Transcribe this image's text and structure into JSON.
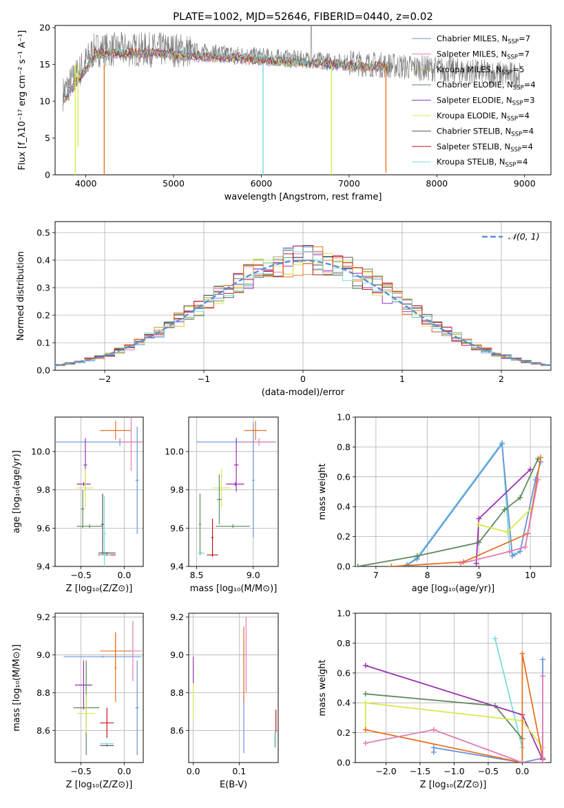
{
  "figure": {
    "title": "PLATE=1002, MJD=52646, FIBERID=0440, z=0.02"
  },
  "chart_data": [
    {
      "id": "spectrum",
      "type": "line",
      "xlabel": "wavelength [Angstrom, rest frame]",
      "ylabel": "Flux [f_λ10⁻¹⁷ erg cm⁻² s⁻¹ A⁻¹]",
      "xlim": [
        3650,
        9300
      ],
      "ylim": [
        0,
        20.3
      ],
      "xticks": [
        4000,
        5000,
        6000,
        7000,
        8000,
        9000
      ],
      "yticks": [
        0,
        5,
        10,
        15,
        20
      ],
      "grid": false,
      "legend_position": "top-right",
      "legend": [
        {
          "pre": "Chabrier MILES, N",
          "sub": "SSP",
          "post": "=7",
          "color": "#6593d8"
        },
        {
          "pre": "Salpeter MILES, N",
          "sub": "SSP",
          "post": "=7",
          "color": "#e07bb5"
        },
        {
          "pre": "Kroupa MILES, N",
          "sub": "SSP",
          "post": "=5",
          "color": "#c2a14a"
        },
        {
          "pre": "Chabrier ELODIE, N",
          "sub": "SSP",
          "post": "=4",
          "color": "#5a8a5a"
        },
        {
          "pre": "Salpeter ELODIE, N",
          "sub": "SSP",
          "post": "=3",
          "color": "#9a2fb0"
        },
        {
          "pre": "Kroupa ELODIE, N",
          "sub": "SSP",
          "post": "=4",
          "color": "#d9e84a"
        },
        {
          "pre": "Chabrier STELIB, N",
          "sub": "SSP",
          "post": "=4",
          "color": "#555555"
        },
        {
          "pre": "Salpeter STELIB, N",
          "sub": "SSP",
          "post": "=4",
          "color": "#c0151b"
        },
        {
          "pre": "Kroupa STELIB, N",
          "sub": "SSP",
          "post": "=4",
          "color": "#7adbe0"
        }
      ],
      "data_color": "#808080",
      "data_range": [
        3740,
        8950
      ],
      "dips": [
        {
          "x": 3880,
          "depth": 0,
          "color": "#d9e84a"
        },
        {
          "x": 3910,
          "depth": 3.8,
          "color": "#d9e84a"
        },
        {
          "x": 4210,
          "depth": 0,
          "color": "#e87020"
        },
        {
          "x": 6020,
          "depth": 0,
          "color": "#7adbe0"
        },
        {
          "x": 6800,
          "depth": 0,
          "color": "#d9e84a"
        },
        {
          "x": 7420,
          "depth": 0.3,
          "color": "#e87020"
        }
      ]
    },
    {
      "id": "residuals",
      "type": "histogram",
      "xlabel": "(data-model)/error",
      "ylabel": "Normed distribution",
      "xlim": [
        -2.5,
        2.5
      ],
      "ylim": [
        0,
        0.54
      ],
      "xticks": [
        -2,
        -1,
        0,
        1,
        2
      ],
      "yticks": [
        0.0,
        0.1,
        0.2,
        0.3,
        0.4,
        0.5
      ],
      "grid": true,
      "legend_position": "top-right",
      "legend_label": "𝒩(0, 1)",
      "reference_curve": {
        "name": "N(0,1)",
        "mu": 0,
        "sigma": 1,
        "color": "#5b8ed6"
      },
      "series_colors": [
        "#6593d8",
        "#e07bb5",
        "#c2a14a",
        "#5a8a5a",
        "#9a2fb0",
        "#d9e84a",
        "#555555",
        "#c0151b",
        "#e87020",
        "#7adbe0"
      ]
    },
    {
      "id": "age_vs_Z",
      "type": "errorbar",
      "xlabel": "Z [log₁₀(Z/Z⊙)]",
      "ylabel": "age  [log₁₀(age/yr)]",
      "xlim": [
        -0.8,
        0.22
      ],
      "ylim": [
        9.4,
        10.18
      ],
      "xticks": [
        -0.5,
        0.0
      ],
      "yticks": [
        9.4,
        9.6,
        9.8,
        10.0
      ],
      "points": [
        {
          "x": -0.05,
          "y": 10.05,
          "xerr": 0.75,
          "yerr": 0.02,
          "color": "#6593d8"
        },
        {
          "x": 0.15,
          "y": 9.85,
          "xerr": 0.02,
          "yerr": 0.28,
          "color": "#6593d8"
        },
        {
          "x": 0.08,
          "y": 10.05,
          "xerr": 0.15,
          "yerr": 0.15,
          "color": "#e07bb5"
        },
        {
          "x": -0.1,
          "y": 10.11,
          "xerr": 0.18,
          "yerr": 0.05,
          "color": "#e87020"
        },
        {
          "x": -0.45,
          "y": 9.93,
          "xerr": 0.02,
          "yerr": 0.14,
          "color": "#9a2fb0"
        },
        {
          "x": -0.47,
          "y": 9.83,
          "xerr": 0.08,
          "yerr": 0.01,
          "color": "#9a2fb0"
        },
        {
          "x": -0.45,
          "y": 9.81,
          "xerr": 0.1,
          "yerr": 0.1,
          "color": "#d9e84a"
        },
        {
          "x": -0.48,
          "y": 9.7,
          "xerr": 0.02,
          "yerr": 0.1,
          "color": "#5a8a5a"
        },
        {
          "x": -0.4,
          "y": 9.61,
          "xerr": 0.15,
          "yerr": 0.01,
          "color": "#5a8a5a"
        },
        {
          "x": -0.25,
          "y": 9.62,
          "xerr": 0.02,
          "yerr": 0.16,
          "color": "#555555"
        },
        {
          "x": -0.23,
          "y": 9.57,
          "xerr": 0.02,
          "yerr": 0.2,
          "color": "#7adbe0"
        },
        {
          "x": -0.2,
          "y": 9.47,
          "xerr": 0.1,
          "yerr": 0.005,
          "color": "#555555"
        },
        {
          "x": -0.2,
          "y": 9.46,
          "xerr": 0.1,
          "yerr": 0.005,
          "color": "#c0151b"
        },
        {
          "x": -0.22,
          "y": 9.46,
          "xerr": 0.06,
          "yerr": 0.005,
          "color": "#7adbe0"
        }
      ]
    },
    {
      "id": "age_vs_mass",
      "type": "errorbar",
      "xlabel": "mass [log₁₀(M/M⊙)]",
      "ylabel": "",
      "xlim": [
        8.43,
        9.22
      ],
      "ylim": [
        9.4,
        10.18
      ],
      "xticks": [
        8.5,
        9.0
      ],
      "yticks": [
        9.4,
        9.6,
        9.8,
        10.0
      ],
      "points": [
        {
          "x": 8.85,
          "y": 10.05,
          "xerr": 0.35,
          "yerr": 0.02,
          "color": "#6593d8"
        },
        {
          "x": 9.0,
          "y": 9.85,
          "xerr": 0.01,
          "yerr": 0.3,
          "color": "#6593d8"
        },
        {
          "x": 9.05,
          "y": 10.05,
          "xerr": 0.15,
          "yerr": 0.02,
          "color": "#e07bb5"
        },
        {
          "x": 9.02,
          "y": 10.11,
          "xerr": 0.1,
          "yerr": 0.05,
          "color": "#e87020"
        },
        {
          "x": 8.85,
          "y": 9.93,
          "xerr": 0.02,
          "yerr": 0.14,
          "color": "#9a2fb0"
        },
        {
          "x": 8.84,
          "y": 9.83,
          "xerr": 0.08,
          "yerr": 0.01,
          "color": "#9a2fb0"
        },
        {
          "x": 8.72,
          "y": 9.81,
          "xerr": 0.08,
          "yerr": 0.1,
          "color": "#d9e84a"
        },
        {
          "x": 8.7,
          "y": 9.75,
          "xerr": 0.02,
          "yerr": 0.13,
          "color": "#5a8a5a"
        },
        {
          "x": 8.82,
          "y": 9.61,
          "xerr": 0.15,
          "yerr": 0.01,
          "color": "#5a8a5a"
        },
        {
          "x": 8.53,
          "y": 9.62,
          "xerr": 0.01,
          "yerr": 0.16,
          "color": "#5a8a5a"
        },
        {
          "x": 8.64,
          "y": 9.55,
          "xerr": 0.01,
          "yerr": 0.1,
          "color": "#c0151b"
        },
        {
          "x": 8.64,
          "y": 9.46,
          "xerr": 0.05,
          "yerr": 0.005,
          "color": "#c0151b"
        },
        {
          "x": 8.54,
          "y": 9.47,
          "xerr": 0.03,
          "yerr": 0.005,
          "color": "#7adbe0"
        }
      ]
    },
    {
      "id": "weight_vs_age",
      "type": "line",
      "xlabel": "age  [log₁₀(age/yr)]",
      "ylabel": "mass weight",
      "xlim": [
        6.6,
        10.4
      ],
      "ylim": [
        0,
        1.0
      ],
      "xticks": [
        7,
        8,
        9,
        10
      ],
      "yticks": [
        0.0,
        0.2,
        0.4,
        0.6,
        0.8,
        1.0
      ],
      "grid": true,
      "series": [
        {
          "color": "#7adbe0",
          "x": [
            7.6,
            7.8,
            9.45,
            9.6,
            9.7
          ],
          "y": [
            0.01,
            0.06,
            0.83,
            0.1,
            0.08
          ]
        },
        {
          "color": "#6593d8",
          "x": [
            7.6,
            7.8,
            9.45,
            9.65,
            9.8,
            10.1,
            10.2
          ],
          "y": [
            0.01,
            0.05,
            0.82,
            0.07,
            0.1,
            0.58,
            0.7
          ]
        },
        {
          "color": "#5a8a5a",
          "x": [
            6.65,
            7.8,
            9.0,
            9.5,
            9.8,
            10.15
          ],
          "y": [
            0.0,
            0.07,
            0.16,
            0.38,
            0.46,
            0.72
          ]
        },
        {
          "color": "#9a2fb0",
          "x": [
            8.95,
            9.0,
            10.0
          ],
          "y": [
            0.02,
            0.32,
            0.65
          ]
        },
        {
          "color": "#d9e84a",
          "x": [
            9.0,
            9.55,
            10.05
          ],
          "y": [
            0.28,
            0.23,
            0.4
          ]
        },
        {
          "color": "#e87020",
          "x": [
            7.3,
            8.7,
            9.95,
            10.2
          ],
          "y": [
            0.0,
            0.03,
            0.22,
            0.73
          ]
        },
        {
          "color": "#e07bb5",
          "x": [
            8.65,
            9.6,
            9.9,
            10.15
          ],
          "y": [
            0.02,
            0.1,
            0.13,
            0.58
          ]
        }
      ]
    },
    {
      "id": "mass_vs_Z",
      "type": "errorbar",
      "xlabel": "Z [log₁₀(Z/Z⊙)]",
      "ylabel": "mass [log₁₀(M/M⊙)]",
      "xlim": [
        -0.8,
        0.22
      ],
      "ylim": [
        8.43,
        9.22
      ],
      "xticks": [
        -0.5,
        0.0
      ],
      "yticks": [
        8.6,
        8.8,
        9.0,
        9.2
      ],
      "points": [
        {
          "x": -0.25,
          "y": 8.99,
          "xerr": 0.45,
          "yerr": 0.005,
          "color": "#6593d8"
        },
        {
          "x": 0.15,
          "y": 8.72,
          "xerr": 0.02,
          "yerr": 0.25,
          "color": "#6593d8"
        },
        {
          "x": 0.1,
          "y": 9.02,
          "xerr": 0.1,
          "yerr": 0.16,
          "color": "#e07bb5"
        },
        {
          "x": -0.1,
          "y": 9.02,
          "xerr": 0.18,
          "yerr": 0.1,
          "color": "#e87020"
        },
        {
          "x": -0.1,
          "y": 8.93,
          "xerr": 0.01,
          "yerr": 0.18,
          "color": "#e87020"
        },
        {
          "x": -0.47,
          "y": 8.84,
          "xerr": 0.1,
          "yerr": 0.13,
          "color": "#9a2fb0"
        },
        {
          "x": -0.44,
          "y": 8.72,
          "xerr": 0.15,
          "yerr": 0.25,
          "color": "#5a8a5a"
        },
        {
          "x": -0.44,
          "y": 8.69,
          "xerr": 0.1,
          "yerr": 0.1,
          "color": "#d9e84a"
        },
        {
          "x": -0.2,
          "y": 8.64,
          "xerr": 0.08,
          "yerr": 0.08,
          "color": "#c0151b"
        },
        {
          "x": -0.2,
          "y": 8.52,
          "xerr": 0.08,
          "yerr": 0.005,
          "color": "#555555"
        },
        {
          "x": -0.2,
          "y": 8.53,
          "xerr": 0.08,
          "yerr": 0.005,
          "color": "#7adbe0"
        }
      ]
    },
    {
      "id": "mass_vs_ebv",
      "type": "errorbar",
      "xlabel": "E(B-V)",
      "ylabel": "",
      "xlim": [
        -0.01,
        0.185
      ],
      "ylim": [
        8.43,
        9.22
      ],
      "xticks": [
        0.0,
        0.1
      ],
      "yticks": [
        8.6,
        8.8,
        9.0,
        9.2
      ],
      "points": [
        {
          "x": 0.0,
          "y": 8.92,
          "xerr": 0.0,
          "yerr": 0.07,
          "color": "#9a2fb0"
        },
        {
          "x": 0.0,
          "y": 8.75,
          "xerr": 0.0,
          "yerr": 0.1,
          "color": "#d9e84a"
        },
        {
          "x": 0.11,
          "y": 8.78,
          "xerr": 0.0,
          "yerr": 0.3,
          "color": "#6593d8"
        },
        {
          "x": 0.11,
          "y": 8.95,
          "xerr": 0.0,
          "yerr": 0.2,
          "color": "#e87020"
        },
        {
          "x": 0.115,
          "y": 9.0,
          "xerr": 0.0,
          "yerr": 0.2,
          "color": "#e07bb5"
        },
        {
          "x": 0.18,
          "y": 8.65,
          "xerr": 0.0,
          "yerr": 0.06,
          "color": "#c0151b"
        },
        {
          "x": 0.178,
          "y": 8.55,
          "xerr": 0.0,
          "yerr": 0.04,
          "color": "#5a8a5a"
        },
        {
          "x": 0.179,
          "y": 8.55,
          "xerr": 0.0,
          "yerr": 0.04,
          "color": "#7adbe0"
        }
      ]
    },
    {
      "id": "weight_vs_Z",
      "type": "line",
      "xlabel": "Z [log₁₀(Z/Z⊙)]",
      "ylabel": "mass weight",
      "xlim": [
        -2.45,
        0.42
      ],
      "ylim": [
        0,
        1.0
      ],
      "xticks": [
        -2.0,
        -1.5,
        -1.0,
        -0.5,
        0.0
      ],
      "yticks": [
        0.0,
        0.2,
        0.4,
        0.6,
        0.8,
        1.0
      ],
      "grid": true,
      "series": [
        {
          "color": "#7adbe0",
          "x": [
            -0.4,
            0.0,
            0.0
          ],
          "y": [
            0.83,
            0.1,
            0.0
          ]
        },
        {
          "color": "#6593d8",
          "x": [
            -1.3,
            -1.3,
            0.0,
            0.3,
            0.3
          ],
          "y": [
            0.07,
            0.1,
            0.0,
            0.03,
            0.69
          ]
        },
        {
          "color": "#5a8a5a",
          "x": [
            -2.3,
            -0.4,
            0.0,
            0.0
          ],
          "y": [
            0.46,
            0.38,
            0.16,
            0.0
          ]
        },
        {
          "color": "#9a2fb0",
          "x": [
            -2.3,
            0.0,
            0.3
          ],
          "y": [
            0.65,
            0.32,
            0.02
          ]
        },
        {
          "color": "#d9e84a",
          "x": [
            -2.3,
            -2.3,
            0.0,
            0.3
          ],
          "y": [
            0.22,
            0.4,
            0.28,
            0.1
          ]
        },
        {
          "color": "#e87020",
          "x": [
            -2.3,
            0.0,
            0.0,
            0.3
          ],
          "y": [
            0.22,
            0.0,
            0.73,
            0.03
          ]
        },
        {
          "color": "#e07bb5",
          "x": [
            -2.3,
            -1.3,
            0.0,
            0.3,
            0.3
          ],
          "y": [
            0.13,
            0.22,
            0.0,
            0.0,
            0.58
          ]
        }
      ]
    }
  ]
}
